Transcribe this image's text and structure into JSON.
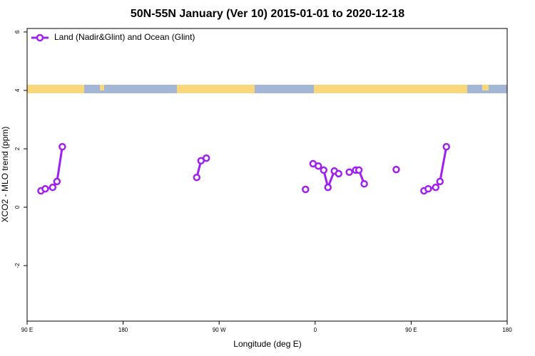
{
  "chart_data": {
    "type": "line",
    "title": "50N-55N January (Ver 10)   2015-01-01 to 2020-12-18",
    "x_label": "Longitude (deg E)",
    "y_label": "XCO2 - MLO trend (ppm)",
    "xlim": [
      90,
      540
    ],
    "ylim": [
      -3.9,
      6.12
    ],
    "xticks": [
      {
        "value": 90,
        "label": "90 E"
      },
      {
        "value": 180,
        "label": "180"
      },
      {
        "value": 270,
        "label": "90 W"
      },
      {
        "value": 360,
        "label": "0"
      },
      {
        "value": 450,
        "label": "90 E"
      },
      {
        "value": 540,
        "label": "180"
      }
    ],
    "yticks": [
      -2,
      0,
      2,
      4,
      6
    ],
    "legend_position": "top-left",
    "series": [
      {
        "name": "Land (Nadir&Glint) and Ocean (Glint)",
        "color": "#a020f0",
        "x": [
          103,
          107,
          114,
          118,
          123,
          null,
          249,
          253,
          258,
          null,
          351,
          null,
          358,
          363,
          368,
          372,
          378,
          382,
          null,
          392,
          null,
          398,
          401,
          406,
          null,
          436,
          null,
          462,
          466,
          473,
          477,
          483
        ],
        "values": [
          0.56,
          0.63,
          0.68,
          0.88,
          2.07,
          null,
          1.02,
          1.59,
          1.68,
          null,
          0.61,
          null,
          1.49,
          1.41,
          1.27,
          0.68,
          1.24,
          1.15,
          null,
          1.2,
          null,
          1.27,
          1.27,
          0.8,
          null,
          1.29,
          null,
          0.56,
          0.63,
          0.68,
          0.88,
          2.07
        ]
      }
    ]
  }
}
